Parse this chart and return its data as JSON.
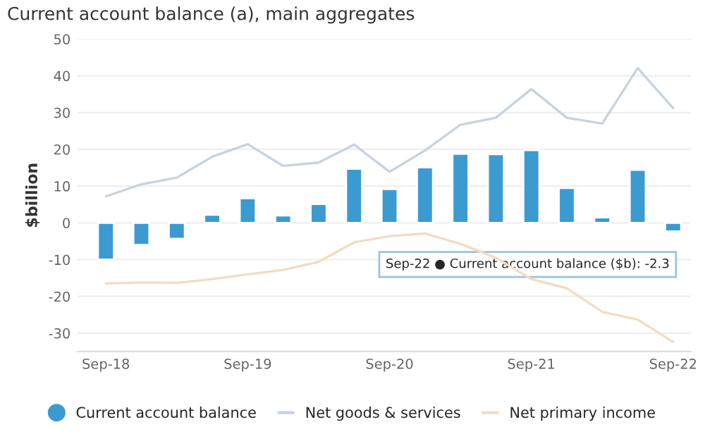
{
  "chart_data": {
    "type": "bar",
    "title": "Current account balance (a), main aggregates",
    "ylabel": "$billion",
    "categories": [
      "Sep-18",
      null,
      null,
      null,
      "Sep-19",
      null,
      null,
      null,
      "Sep-20",
      null,
      null,
      null,
      "Sep-21",
      null,
      null,
      null,
      "Sep-22"
    ],
    "series": [
      {
        "name": "Current account balance",
        "color": "#3b9bd1",
        "values": [
          -10,
          -6,
          -4.3,
          2.2,
          6.7,
          2,
          5.1,
          14.7,
          9.2,
          15.1,
          18.8,
          18.7,
          19.8,
          9.5,
          1.5,
          14.4,
          -2.3
        ]
      },
      {
        "name": "Net goods & services",
        "type": "line",
        "color": "#c8d3de",
        "values": [
          7.2,
          10.5,
          12.3,
          18,
          21.4,
          15.5,
          16.4,
          21.3,
          13.9,
          19.7,
          26.7,
          28.6,
          36.4,
          28.6,
          27,
          42.1,
          31.2
        ]
      },
      {
        "name": "Net primary income",
        "type": "line",
        "color": "#f3dcc2",
        "values": [
          -16.5,
          -16.2,
          -16.3,
          -15.3,
          -14,
          -12.8,
          -10.6,
          -5.3,
          -3.6,
          -2.9,
          -5.7,
          -9.5,
          -15.3,
          -17.8,
          -24.2,
          -26.3,
          -32.4
        ]
      }
    ],
    "ylim": [
      -35,
      50
    ],
    "yticks": [
      -30,
      -20,
      -10,
      0,
      10,
      20,
      30,
      40,
      50
    ],
    "grid": "y",
    "legend": "bottom",
    "annotations": [
      {
        "text": "Sep-22 ● Current account balance ($b): -2.3",
        "x": "Sep-22",
        "y": -2.3
      }
    ]
  }
}
